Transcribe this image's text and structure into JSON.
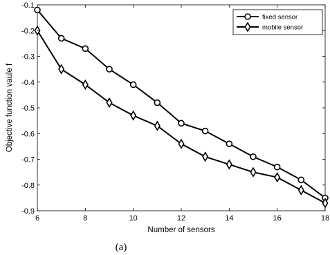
{
  "chart_data": {
    "type": "line",
    "xlabel": "Number of sensors",
    "ylabel": "Objective function vaule f",
    "caption": "(a)",
    "xlim": [
      6,
      18
    ],
    "ylim": [
      -0.9,
      -0.1
    ],
    "xticks": [
      6,
      8,
      10,
      12,
      14,
      16,
      18
    ],
    "xtick_labels": [
      "6",
      "8",
      "10",
      "12",
      "14",
      "16",
      "18"
    ],
    "yticks": [
      -0.1,
      -0.2,
      -0.3,
      -0.4,
      -0.5,
      -0.6,
      -0.7,
      -0.8,
      -0.9
    ],
    "ytick_labels": [
      "-0.1",
      "-0.2",
      "-0.3",
      "-0.4",
      "-0.5",
      "-0.6",
      "-0.7",
      "-0.8",
      "-0.9"
    ],
    "grid": false,
    "legend_position": "top-right",
    "x": [
      6,
      7,
      8,
      9,
      10,
      11,
      12,
      13,
      14,
      15,
      16,
      17,
      18
    ],
    "series": [
      {
        "name": "fixed sensor",
        "marker": "circle",
        "color": "#000000",
        "values": [
          -0.12,
          -0.23,
          -0.27,
          -0.35,
          -0.41,
          -0.48,
          -0.56,
          -0.59,
          -0.64,
          -0.69,
          -0.73,
          -0.78,
          -0.85
        ]
      },
      {
        "name": "mobile sensor",
        "marker": "diamond",
        "color": "#000000",
        "values": [
          -0.2,
          -0.35,
          -0.41,
          -0.48,
          -0.53,
          -0.57,
          -0.64,
          -0.69,
          -0.72,
          -0.75,
          -0.77,
          -0.82,
          -0.87
        ]
      }
    ]
  }
}
